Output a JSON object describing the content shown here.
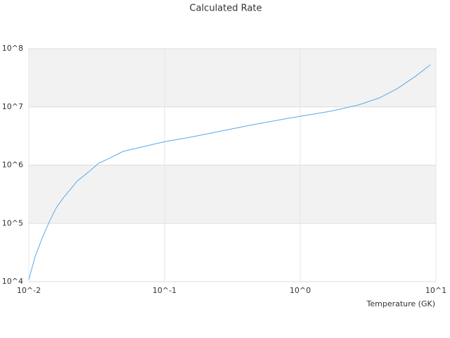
{
  "chart_data": {
    "type": "line",
    "title": "Calculated Rate",
    "x_label": "Temperature (GK)",
    "x_log": true,
    "y_log": true,
    "bands": true,
    "band_color": "#f2f2f2",
    "grid": true,
    "xlim": [
      0.01,
      10
    ],
    "ylim": [
      10000,
      100000000
    ],
    "xticks": [
      {
        "value": 0.01,
        "label": "10^-2"
      },
      {
        "value": 0.1,
        "label": "10^-1"
      },
      {
        "value": 1,
        "label": "10^0"
      },
      {
        "value": 10,
        "label": "10^1"
      }
    ],
    "yticks": [
      {
        "value": 10000,
        "label": "10^4"
      },
      {
        "value": 100000,
        "label": "10^5"
      },
      {
        "value": 1000000,
        "label": "10^6"
      },
      {
        "value": 10000000,
        "label": "10^7"
      },
      {
        "value": 100000000,
        "label": "10^8"
      }
    ],
    "x": [
      0.01,
      0.0111,
      0.01254,
      0.01413,
      0.01593,
      0.01794,
      0.02278,
      0.02724,
      0.03258,
      0.03896,
      0.04946,
      0.07073,
      0.1012,
      0.1537,
      0.2198,
      0.4497,
      0.8164,
      1.671,
      2.692,
      3.85,
      5.18,
      7.0,
      9.1
    ],
    "series": [
      {
        "color": "#5aa9e6",
        "values": [
          10870,
          26500,
          56100,
          106000,
          186000,
          274000,
          535000,
          747000,
          1070000,
          1300000,
          1720000,
          2090000,
          2540000,
          3000000,
          3550000,
          4950000,
          6370000,
          8400000,
          10800000,
          14300000,
          20500000,
          32900000,
          52700000
        ]
      }
    ]
  }
}
